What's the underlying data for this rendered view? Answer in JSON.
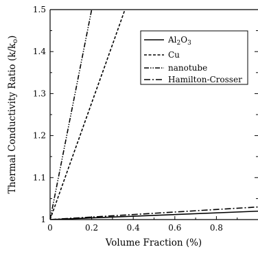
{
  "chart_data": {
    "type": "line",
    "xlabel": "Volume Fraction (%)",
    "ylabel": "Thermal Conductivity Ratio (k/k",
    "ylabel_sub": "o",
    "ylabel_close": ")",
    "xlim": [
      0,
      1.0
    ],
    "ylim": [
      1.0,
      1.5
    ],
    "xticks": [
      "0",
      "0.2",
      "0.4",
      "0.6",
      "0.8"
    ],
    "xtick_values": [
      0,
      0.2,
      0.4,
      0.6,
      0.8
    ],
    "yticks": [
      "1",
      "1.1",
      "1.2",
      "1.3",
      "1.4",
      "1.5"
    ],
    "ytick_values": [
      1.0,
      1.1,
      1.2,
      1.3,
      1.4,
      1.5
    ],
    "grid": false,
    "legend_position": "top-right",
    "series": [
      {
        "name": "Al2O3",
        "label_main": "Al",
        "label_sub1": "2",
        "label_mid": "O",
        "label_sub2": "3",
        "style": "solid",
        "x": [
          0,
          1.0
        ],
        "y": [
          1.0,
          1.02
        ]
      },
      {
        "name": "Cu",
        "label_main": "Cu",
        "style": "dashed",
        "x": [
          0,
          0.36
        ],
        "y": [
          1.0,
          1.5
        ]
      },
      {
        "name": "nanotube",
        "label_main": "nanotube",
        "style": "dashdotdot",
        "x": [
          0,
          0.2
        ],
        "y": [
          1.0,
          1.5
        ]
      },
      {
        "name": "Hamilton-Crosser",
        "label_main": "Hamilton-Crosser",
        "style": "dashdot",
        "x": [
          0,
          1.0
        ],
        "y": [
          1.0,
          1.03
        ]
      }
    ],
    "colors": {
      "line": "#000000",
      "background": "#ffffff"
    }
  }
}
